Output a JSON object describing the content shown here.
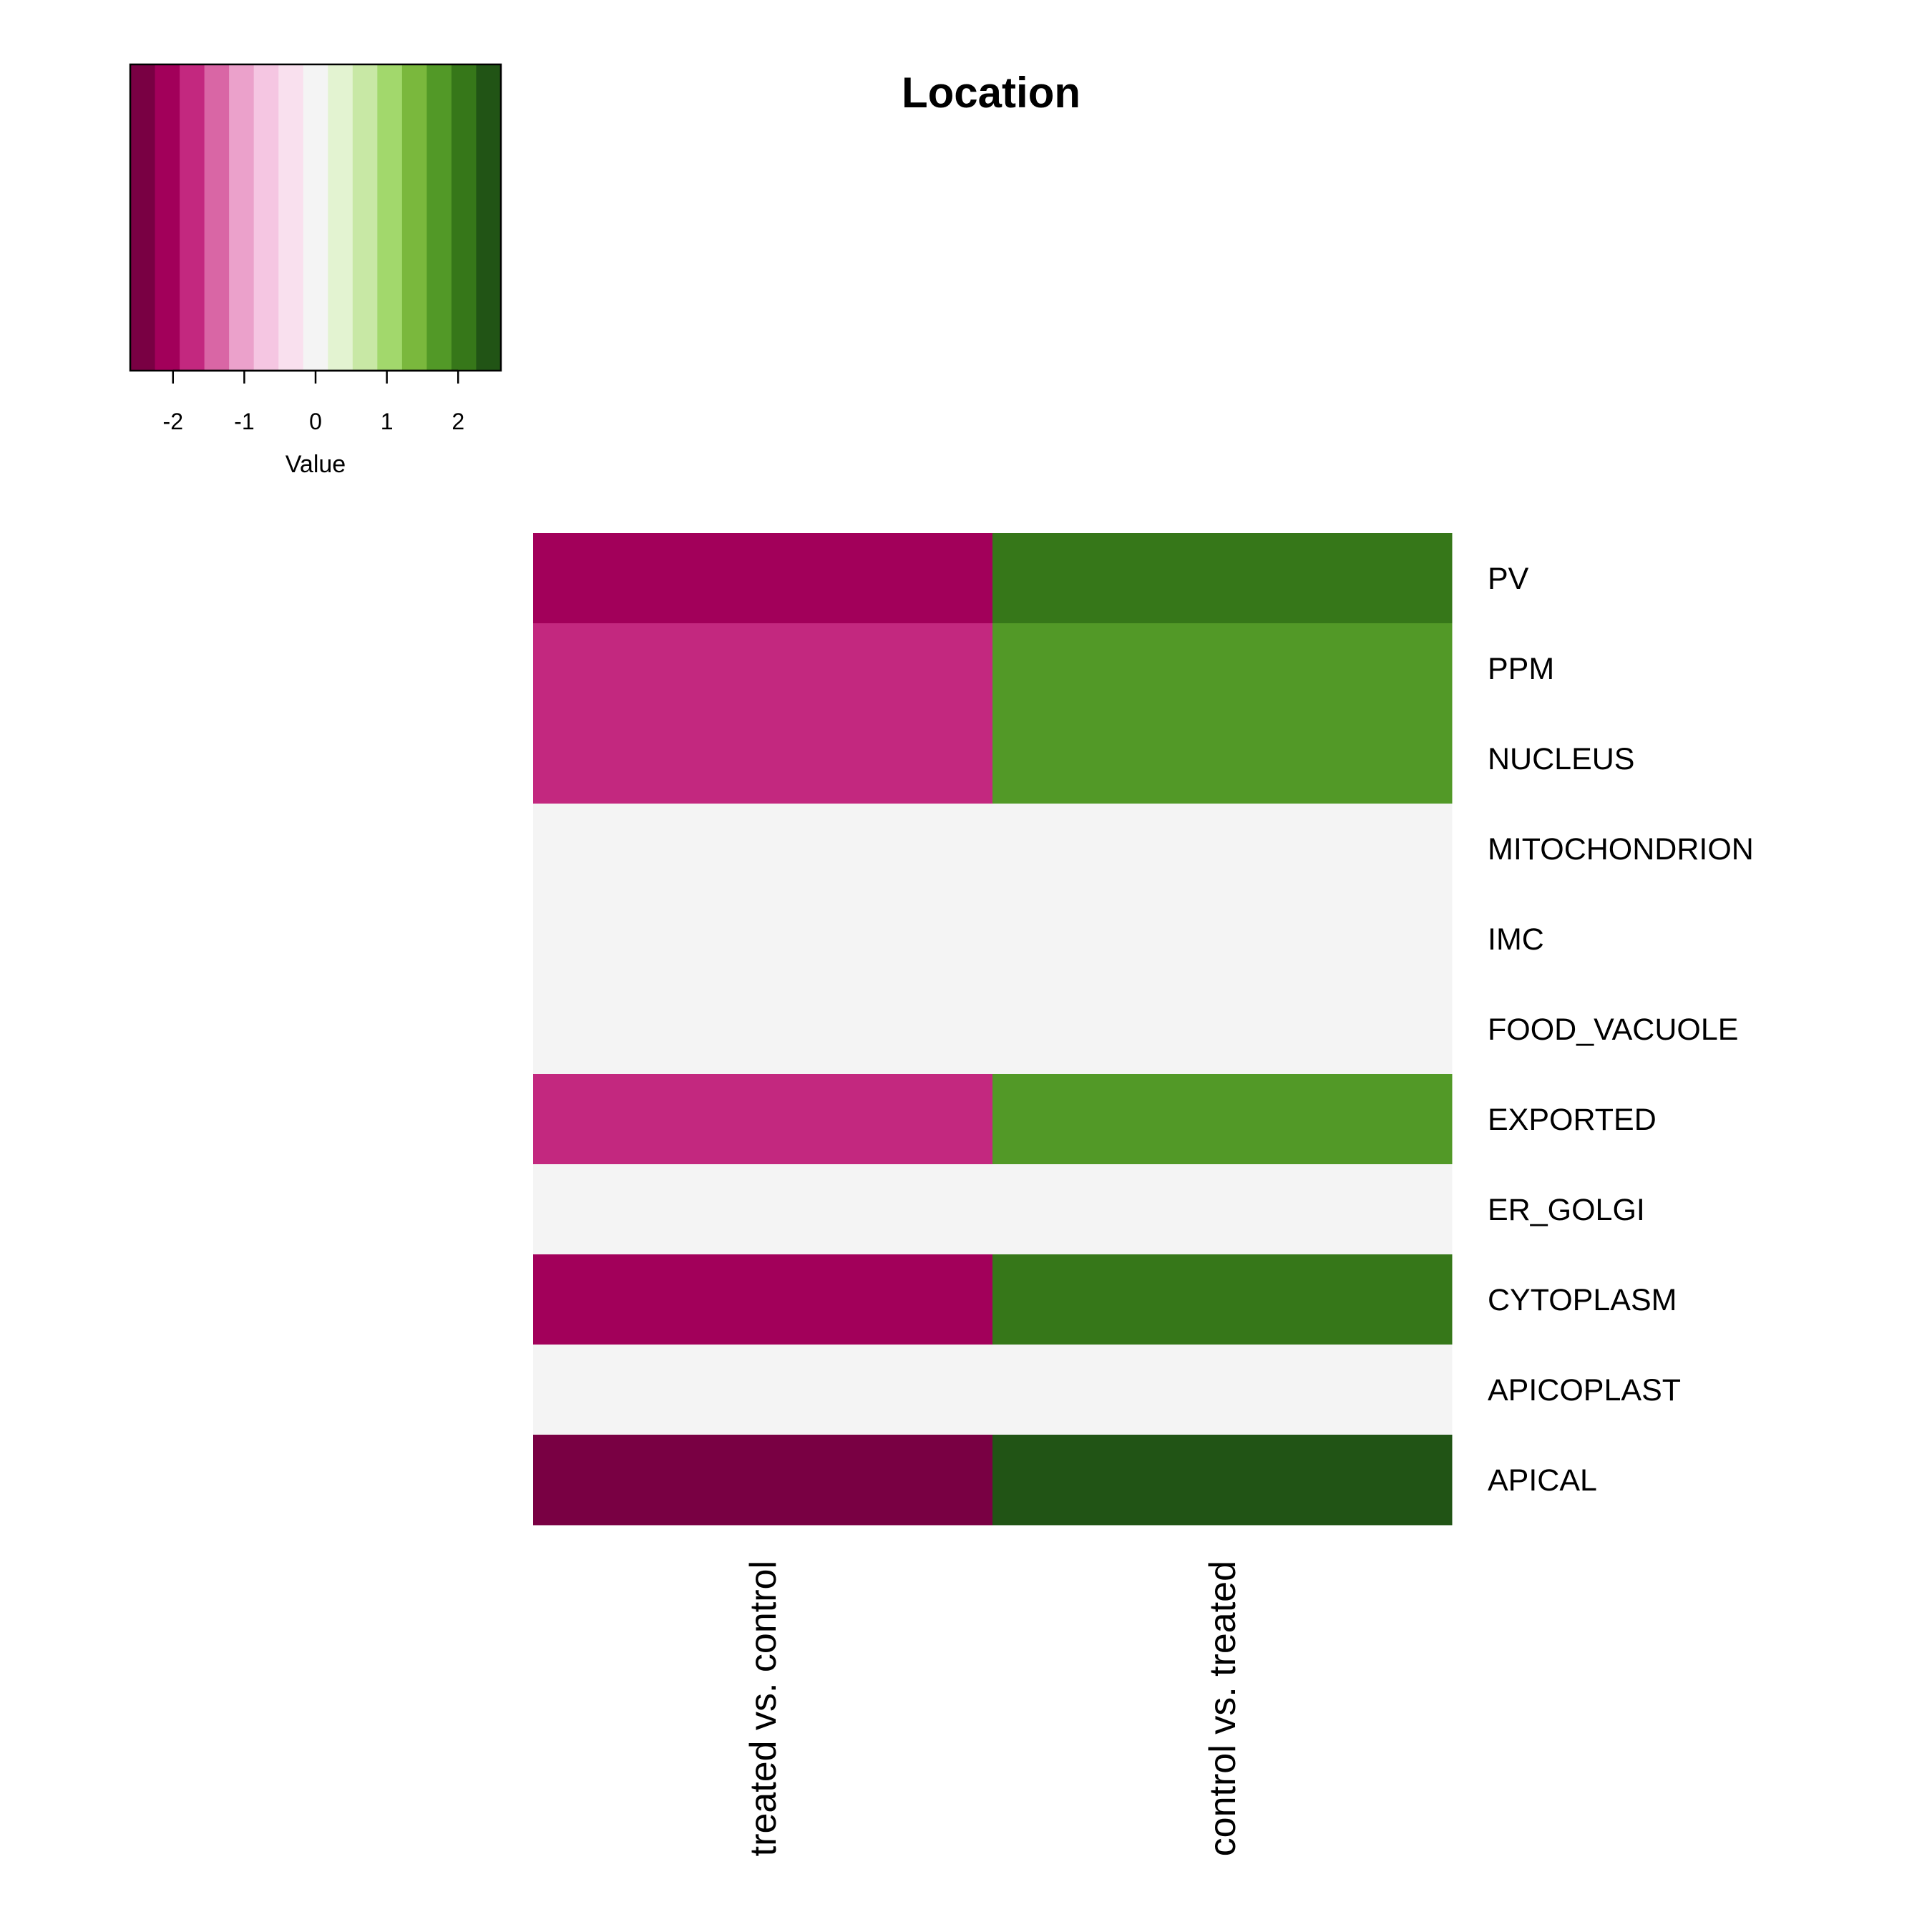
{
  "chart_data": {
    "type": "heatmap",
    "title": "Location",
    "columns": [
      "treated vs. control",
      "control vs. treated"
    ],
    "rows": [
      "PV",
      "PPM",
      "NUCLEUS",
      "MITOCHONDRION",
      "IMC",
      "FOOD_VACUOLE",
      "EXPORTED",
      "ER_GOLGI",
      "CYTOPLASM",
      "APICOPLAST",
      "APICAL"
    ],
    "values": [
      [
        -2.2,
        2.2
      ],
      [
        -1.9,
        1.9
      ],
      [
        -1.9,
        1.9
      ],
      [
        0,
        0
      ],
      [
        0,
        0
      ],
      [
        0,
        0
      ],
      [
        -1.9,
        1.9
      ],
      [
        0,
        0
      ],
      [
        -2.2,
        2.2
      ],
      [
        0,
        0
      ],
      [
        -2.5,
        2.5
      ]
    ],
    "color_key": {
      "title": "Value",
      "range": [
        -2.6,
        2.6
      ],
      "ticks": [
        "-2",
        "-1",
        "0",
        "1",
        "2"
      ],
      "tick_values": [
        -2,
        -1,
        0,
        1,
        2
      ],
      "colors": [
        "#790043",
        "#A2005A",
        "#C3287F",
        "#D966A5",
        "#EBA1CB",
        "#F5C6E2",
        "#F9E0EE",
        "#F4F4F4",
        "#E3F3D1",
        "#C8E8A5",
        "#A2D86C",
        "#7AB83D",
        "#529927",
        "#367719",
        "#215415"
      ]
    }
  }
}
